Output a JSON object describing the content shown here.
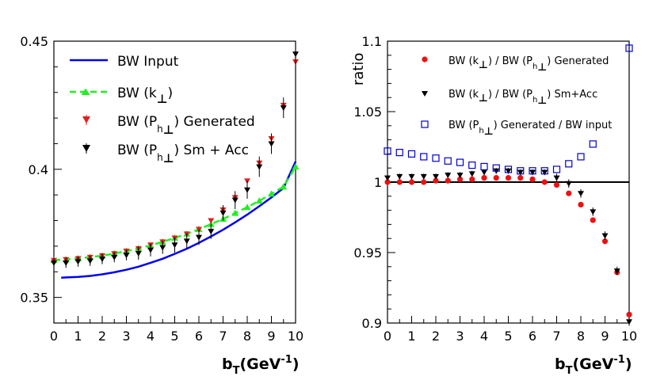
{
  "chart_data": [
    {
      "type": "line",
      "xlabel": "b_T(GeV^-1)",
      "xlabel_main": "b",
      "xlabel_sub": "T",
      "xlabel_unit": "(GeV",
      "xlabel_exp": "-1",
      "xlabel_close": ")",
      "ylabel": "",
      "xlim": [
        0,
        10
      ],
      "ylim": [
        0.34,
        0.45
      ],
      "xticks": [
        0,
        1,
        2,
        3,
        4,
        5,
        6,
        7,
        8,
        9,
        10
      ],
      "yticks": [
        0.35,
        0.4,
        0.45
      ],
      "ytick_labels": [
        "0.35",
        "0.4",
        "0.45"
      ],
      "legend": {
        "input": {
          "pre": "BW Input"
        },
        "k": {
          "pre": "BW (k",
          "perp": "⊥",
          "post": ")"
        },
        "gen": {
          "pre": "BW (P",
          "sub": "h",
          "perp": "⊥",
          "post": ") Generated"
        },
        "sm": {
          "pre": "BW (P",
          "sub": "h",
          "perp": "⊥",
          "post": ") Sm + Acc"
        }
      },
      "series": [
        {
          "name": "BW Input",
          "style": "line",
          "color": "#0000ee",
          "x": [
            0.3,
            0.5,
            1,
            1.5,
            2,
            2.5,
            3,
            3.5,
            4,
            4.5,
            5,
            5.5,
            6,
            6.5,
            7,
            7.5,
            8,
            8.5,
            9,
            9.5,
            10
          ],
          "y": [
            0.3577,
            0.3578,
            0.358,
            0.3584,
            0.359,
            0.3598,
            0.3608,
            0.362,
            0.3635,
            0.3651,
            0.367,
            0.369,
            0.3713,
            0.3738,
            0.3764,
            0.3793,
            0.3823,
            0.3856,
            0.389,
            0.3927,
            0.403
          ]
        },
        {
          "name": "BW (k⊥)",
          "style": "dashed-triangle",
          "color": "#22ee22",
          "x": [
            0,
            0.5,
            1,
            1.5,
            2,
            2.5,
            3,
            3.5,
            4,
            4.5,
            5,
            5.5,
            6,
            6.5,
            7,
            7.5,
            8,
            8.5,
            9,
            9.5,
            10
          ],
          "y": [
            0.3645,
            0.3648,
            0.3652,
            0.3657,
            0.3663,
            0.3671,
            0.3681,
            0.3691,
            0.3703,
            0.3717,
            0.3732,
            0.3748,
            0.3766,
            0.3786,
            0.3806,
            0.3829,
            0.3852,
            0.3877,
            0.3904,
            0.3932,
            0.401
          ]
        },
        {
          "name": "BW (Ph⊥) Generated",
          "style": "triangle-down",
          "color": "#dd2222",
          "x": [
            0,
            0.5,
            1,
            1.5,
            2,
            2.5,
            3,
            3.5,
            4,
            4.5,
            5,
            5.5,
            6,
            6.5,
            7,
            7.5,
            8,
            8.5,
            9,
            9.5,
            10
          ],
          "y": [
            0.3645,
            0.3648,
            0.3652,
            0.3657,
            0.3663,
            0.3671,
            0.3681,
            0.3691,
            0.3705,
            0.3717,
            0.3732,
            0.3748,
            0.3766,
            0.38,
            0.3842,
            0.389,
            0.3955,
            0.4025,
            0.412,
            0.425,
            0.442
          ]
        },
        {
          "name": "BW (Ph⊥) Sm + Acc",
          "style": "triangle-down",
          "color": "#000000",
          "x": [
            0,
            0.5,
            1,
            1.5,
            2,
            2.5,
            3,
            3.5,
            4,
            4.5,
            5,
            5.5,
            6,
            6.5,
            7,
            7.5,
            8,
            8.5,
            9,
            9.5,
            10
          ],
          "y": [
            0.3635,
            0.3635,
            0.364,
            0.3643,
            0.365,
            0.3657,
            0.3665,
            0.3672,
            0.3685,
            0.3695,
            0.3705,
            0.372,
            0.3735,
            0.3758,
            0.383,
            0.388,
            0.392,
            0.401,
            0.41,
            0.424,
            0.445
          ],
          "yerr": [
            0.002,
            0.002,
            0.002,
            0.002,
            0.002,
            0.002,
            0.002,
            0.0025,
            0.0025,
            0.0025,
            0.003,
            0.003,
            0.003,
            0.003,
            0.003,
            0.0035,
            0.0035,
            0.004,
            0.004,
            0.004,
            0.004
          ]
        }
      ]
    },
    {
      "type": "scatter",
      "xlabel": "b_T(GeV^-1)",
      "xlabel_main": "b",
      "xlabel_sub": "T",
      "xlabel_unit": "(GeV",
      "xlabel_exp": "-1",
      "xlabel_close": ")",
      "ylabel": "ratio",
      "xlim": [
        0,
        10
      ],
      "ylim": [
        0.9,
        1.1
      ],
      "xticks": [
        0,
        1,
        2,
        3,
        4,
        5,
        6,
        7,
        8,
        9,
        10
      ],
      "yticks": [
        0.9,
        0.95,
        1,
        1.05,
        1.1
      ],
      "ytick_labels": [
        "0.9",
        "0.95",
        "1",
        "1.05",
        "1.1"
      ],
      "reference_line": 1,
      "legend": {
        "gen": {
          "pre": "BW (k",
          "perp1": "⊥",
          "mid": ")  / BW (P",
          "sub": "h",
          "perp2": "⊥",
          "post": ") Generated"
        },
        "sm": {
          "pre": "BW (k",
          "perp1": "⊥",
          "mid": ")  / BW (P",
          "sub": "h",
          "perp2": "⊥",
          "post": ") Sm+Acc"
        },
        "inp": {
          "pre": "BW (P",
          "sub": "h",
          "perp": "⊥",
          "post": ") Generated / BW input"
        }
      },
      "series": [
        {
          "name": "BW (k⊥) / BW (Ph⊥) Generated",
          "style": "circle",
          "color": "#ee1111",
          "x": [
            0,
            0.5,
            1,
            1.5,
            2,
            2.5,
            3,
            3.5,
            4,
            4.5,
            5,
            5.5,
            6,
            6.5,
            7,
            7.5,
            8,
            8.5,
            9,
            9.5,
            10
          ],
          "y": [
            1.0,
            1.0,
            1.0,
            1.0,
            1.001,
            1.001,
            1.002,
            1.002,
            1.003,
            1.003,
            1.003,
            1.003,
            1.002,
            1.0,
            0.998,
            0.992,
            0.984,
            0.973,
            0.958,
            0.936,
            0.906
          ]
        },
        {
          "name": "BW (k⊥) / BW (Ph⊥) Sm+Acc",
          "style": "triangle-down",
          "color": "#000000",
          "x": [
            0,
            0.5,
            1,
            1.5,
            2,
            2.5,
            3,
            3.5,
            4,
            4.5,
            5,
            5.5,
            6,
            6.5,
            7,
            7.5,
            8,
            8.5,
            9,
            9.5,
            10
          ],
          "y": [
            1.003,
            1.004,
            1.004,
            1.004,
            1.004,
            1.005,
            1.005,
            1.006,
            1.007,
            1.008,
            1.008,
            1.007,
            1.007,
            1.007,
            1.003,
            0.999,
            0.992,
            0.979,
            0.962,
            0.937,
            0.901
          ],
          "yerr": [
            0.002,
            0.002,
            0.002,
            0.002,
            0.002,
            0.002,
            0.002,
            0.002,
            0.002,
            0.002,
            0.002,
            0.002,
            0.002,
            0.002,
            0.003,
            0.003,
            0.003,
            0.003,
            0.003,
            0.003,
            0.003
          ]
        },
        {
          "name": "BW (Ph⊥) Generated / BW input",
          "style": "open-square",
          "color": "#0000cc",
          "x": [
            0,
            0.5,
            1,
            1.5,
            2,
            2.5,
            3,
            3.5,
            4,
            4.5,
            5,
            5.5,
            6,
            6.5,
            7,
            7.5,
            8,
            8.5,
            9,
            9.5,
            10
          ],
          "y": [
            1.022,
            1.021,
            1.02,
            1.018,
            1.017,
            1.015,
            1.014,
            1.012,
            1.011,
            1.01,
            1.009,
            1.008,
            1.008,
            1.008,
            1.009,
            1.013,
            1.018,
            1.027,
            null,
            null,
            1.095
          ]
        }
      ]
    }
  ]
}
